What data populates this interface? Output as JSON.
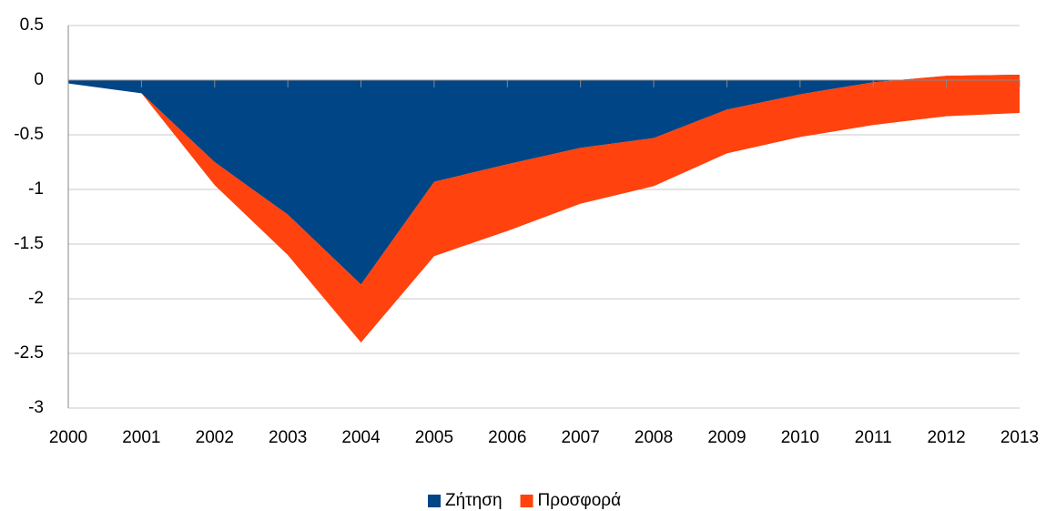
{
  "chart_data": {
    "type": "stacked_area",
    "categories": [
      "2000",
      "2001",
      "2002",
      "2003",
      "2004",
      "2005",
      "2006",
      "2007",
      "2008",
      "2009",
      "2010",
      "2011",
      "2012",
      "2013"
    ],
    "series": [
      {
        "name": "Ζήτηση",
        "color": "#004586",
        "values": [
          -0.03,
          -0.12,
          -0.75,
          -1.23,
          -1.87,
          -0.93,
          -0.77,
          -0.62,
          -0.53,
          -0.27,
          -0.13,
          -0.02,
          0.04,
          0.05
        ]
      },
      {
        "name": "Προσφορά",
        "color": "#ff420e",
        "values": [
          0,
          0,
          -0.21,
          -0.37,
          -0.53,
          -0.68,
          -0.61,
          -0.51,
          -0.44,
          -0.4,
          -0.39,
          -0.39,
          -0.37,
          -0.35
        ]
      }
    ],
    "ylim": [
      -3,
      0.5
    ],
    "yticks": [
      0.5,
      0,
      -0.5,
      -1,
      -1.5,
      -2,
      -2.5,
      -3
    ],
    "grid": true,
    "legend": "bottom"
  }
}
